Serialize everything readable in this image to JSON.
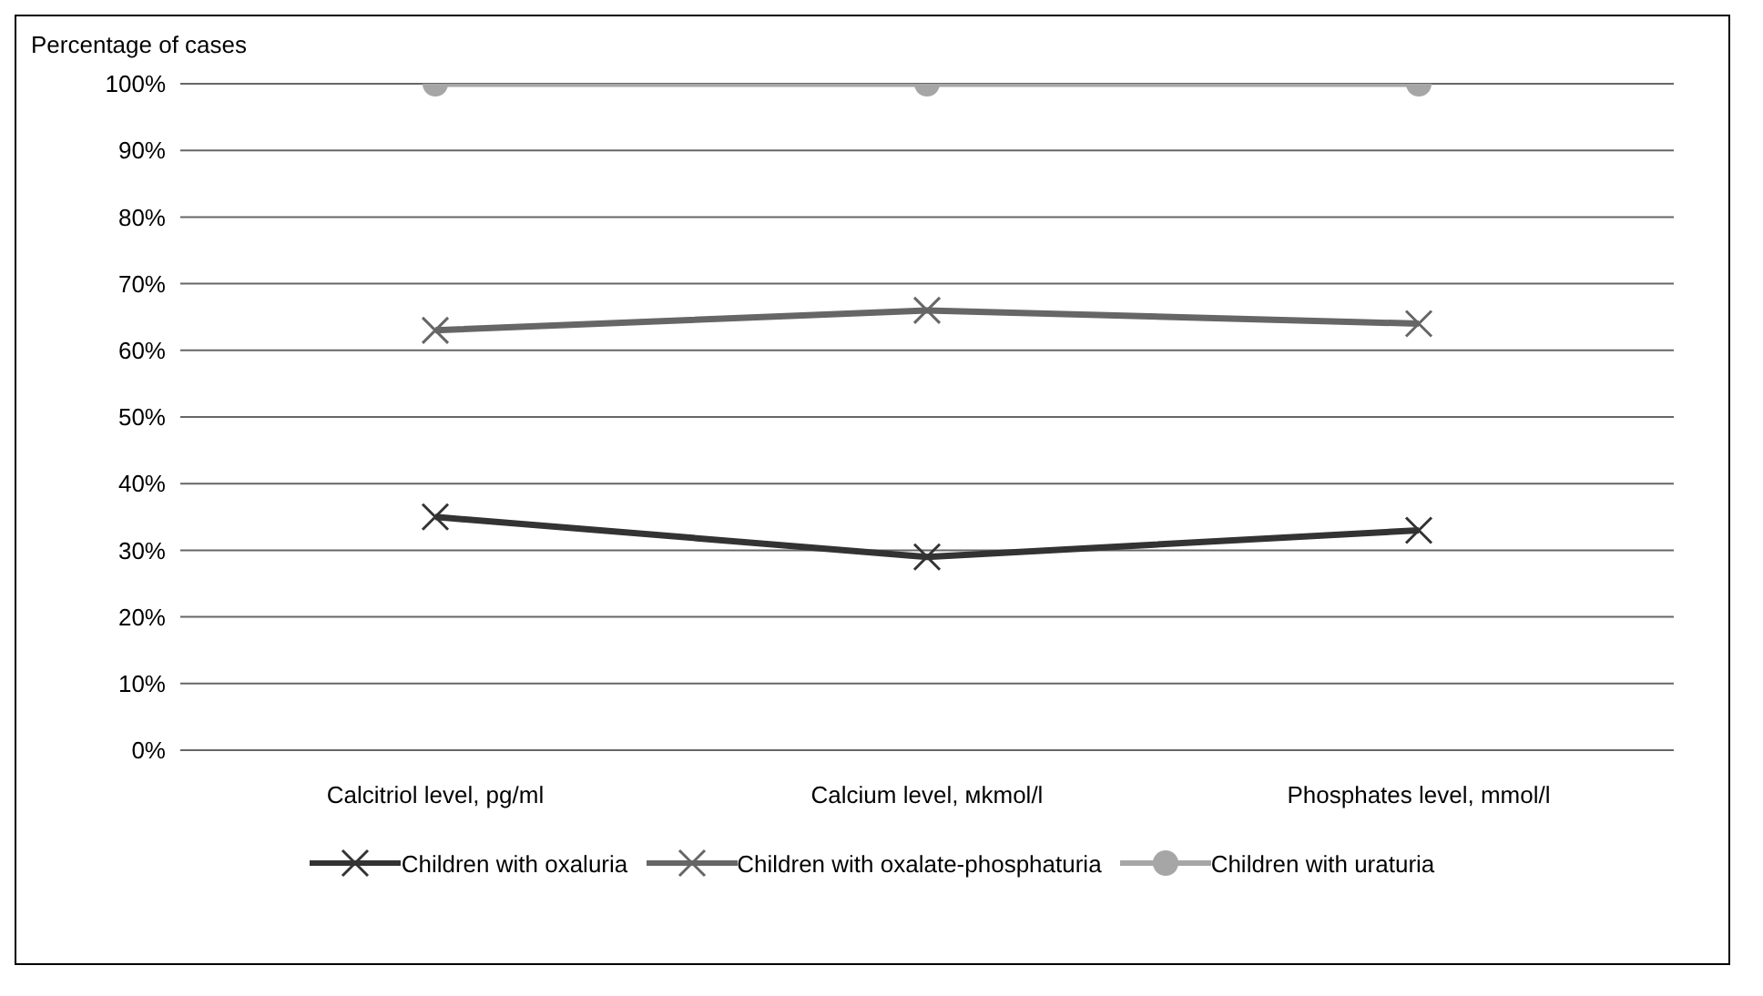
{
  "chart_data": {
    "type": "line",
    "ylabel": "Percentage of cases",
    "categories": [
      "Calcitriol level, pg/ml",
      "Calcium level, мkmol/l",
      "Phosphates level, mmol/l"
    ],
    "series": [
      {
        "name": "Children with oxaluria",
        "color": "#333333",
        "marker": "cross",
        "values": [
          35,
          29,
          33
        ]
      },
      {
        "name": "Children with oxalate-phosphaturia",
        "color": "#666666",
        "marker": "cross",
        "values": [
          63,
          66,
          64
        ]
      },
      {
        "name": "Children with uraturia",
        "color": "#a6a6a6",
        "marker": "circle",
        "values": [
          100,
          100,
          100
        ]
      }
    ],
    "ylim": [
      0,
      100
    ],
    "yticks": [
      {
        "value": 0,
        "label": "0%"
      },
      {
        "value": 10,
        "label": "10%"
      },
      {
        "value": 20,
        "label": "20%"
      },
      {
        "value": 30,
        "label": "30%"
      },
      {
        "value": 40,
        "label": "40%"
      },
      {
        "value": 50,
        "label": "50%"
      },
      {
        "value": 60,
        "label": "60%"
      },
      {
        "value": 70,
        "label": "70%"
      },
      {
        "value": 80,
        "label": "80%"
      },
      {
        "value": 90,
        "label": "90%"
      },
      {
        "value": 100,
        "label": "100%"
      }
    ],
    "grid": "y",
    "legend": "bottom",
    "line_style": "solid"
  }
}
